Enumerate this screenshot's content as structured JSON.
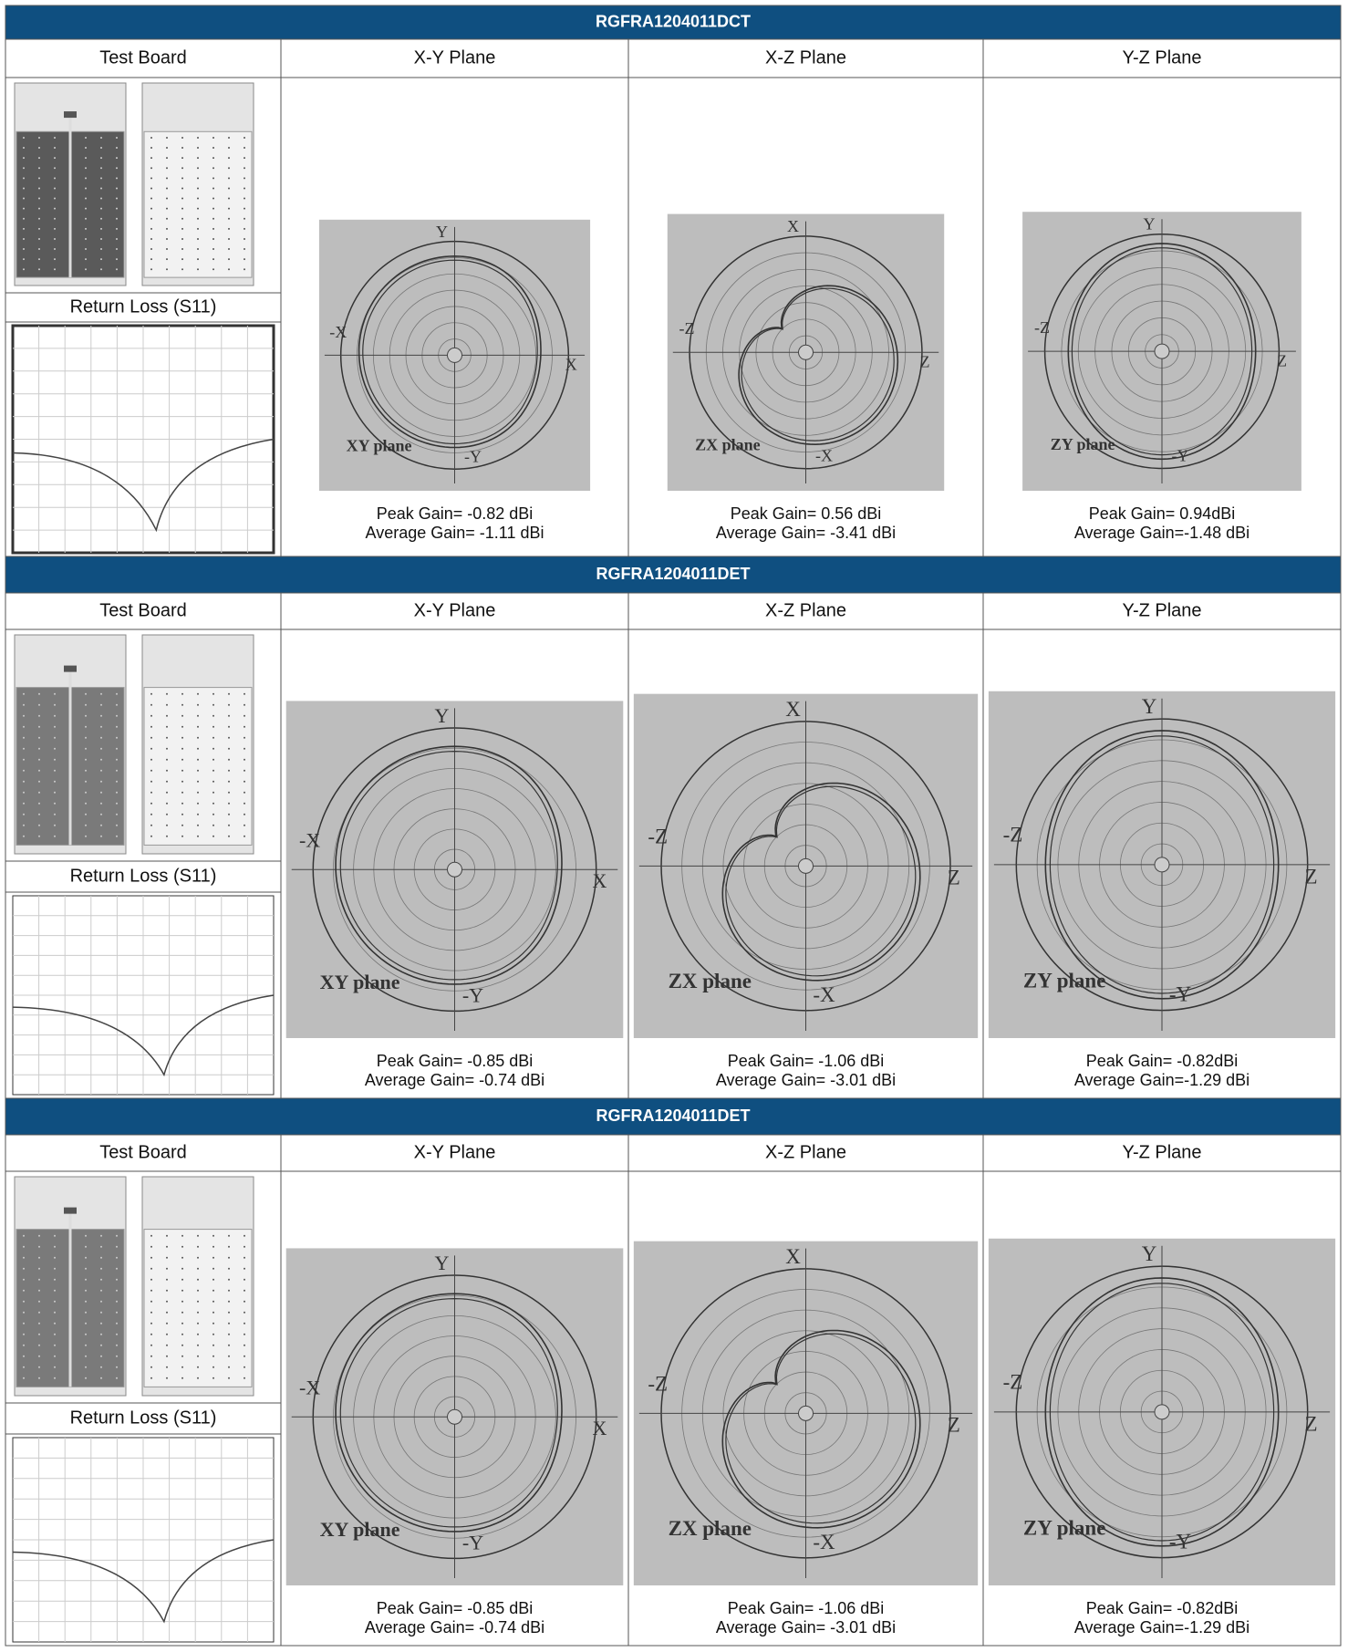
{
  "sections": [
    {
      "title": "RGFRA1204011DCT",
      "headers": [
        "Test Board",
        "X-Y Plane",
        "X-Z Plane",
        "Y-Z Plane"
      ],
      "return_loss_label": "Return Loss (S11)",
      "plots": [
        {
          "axes": {
            "top": "Y",
            "left": "-X",
            "right": "X",
            "bottom": "-Y"
          },
          "label": "XY plane",
          "peak": "Peak Gain= -0.82 dBi",
          "average": "Average Gain= -1.11 dBi"
        },
        {
          "axes": {
            "top": "X",
            "left": "-Z",
            "right": "Z",
            "bottom": "-X"
          },
          "label": "ZX plane",
          "peak": "Peak Gain= 0.56 dBi",
          "average": "Average Gain= -3.41 dBi"
        },
        {
          "axes": {
            "top": "Y",
            "left": "-Z",
            "right": "Z",
            "bottom": "-Y"
          },
          "label": "ZY plane",
          "peak": "Peak Gain= 0.94dBi",
          "average": "Average Gain=-1.48 dBi"
        }
      ]
    },
    {
      "title": "RGFRA1204011DET",
      "headers": [
        "Test Board",
        "X-Y Plane",
        "X-Z Plane",
        "Y-Z Plane"
      ],
      "return_loss_label": "Return Loss (S11)",
      "plots": [
        {
          "axes": {
            "top": "Y",
            "left": "-X",
            "right": "X",
            "bottom": "-Y"
          },
          "label": "XY plane",
          "peak": "Peak Gain= -0.85 dBi",
          "average": "Average Gain= -0.74 dBi"
        },
        {
          "axes": {
            "top": "X",
            "left": "-Z",
            "right": "Z",
            "bottom": "-X"
          },
          "label": "ZX plane",
          "peak": "Peak Gain= -1.06 dBi",
          "average": "Average Gain= -3.01 dBi"
        },
        {
          "axes": {
            "top": "Y",
            "left": "-Z",
            "right": "Z",
            "bottom": "-Y"
          },
          "label": "ZY plane",
          "peak": "Peak Gain= -0.82dBi",
          "average": "Average Gain=-1.29 dBi"
        }
      ]
    },
    {
      "title": "RGFRA1204011DET",
      "headers": [
        "Test Board",
        "X-Y Plane",
        "X-Z Plane",
        "Y-Z Plane"
      ],
      "return_loss_label": "Return Loss (S11)",
      "plots": [
        {
          "axes": {
            "top": "Y",
            "left": "-X",
            "right": "X",
            "bottom": "-Y"
          },
          "label": "XY plane",
          "peak": "Peak Gain= -0.85 dBi",
          "average": "Average Gain= -0.74 dBi"
        },
        {
          "axes": {
            "top": "X",
            "left": "-Z",
            "right": "Z",
            "bottom": "-X"
          },
          "label": "ZX plane",
          "peak": "Peak Gain= -1.06 dBi",
          "average": "Average Gain= -3.01 dBi"
        },
        {
          "axes": {
            "top": "Y",
            "left": "-Z",
            "right": "Z",
            "bottom": "-Y"
          },
          "label": "ZY plane",
          "peak": "Peak Gain= -0.82dBi",
          "average": "Average Gain=-1.29 dBi"
        }
      ]
    }
  ]
}
